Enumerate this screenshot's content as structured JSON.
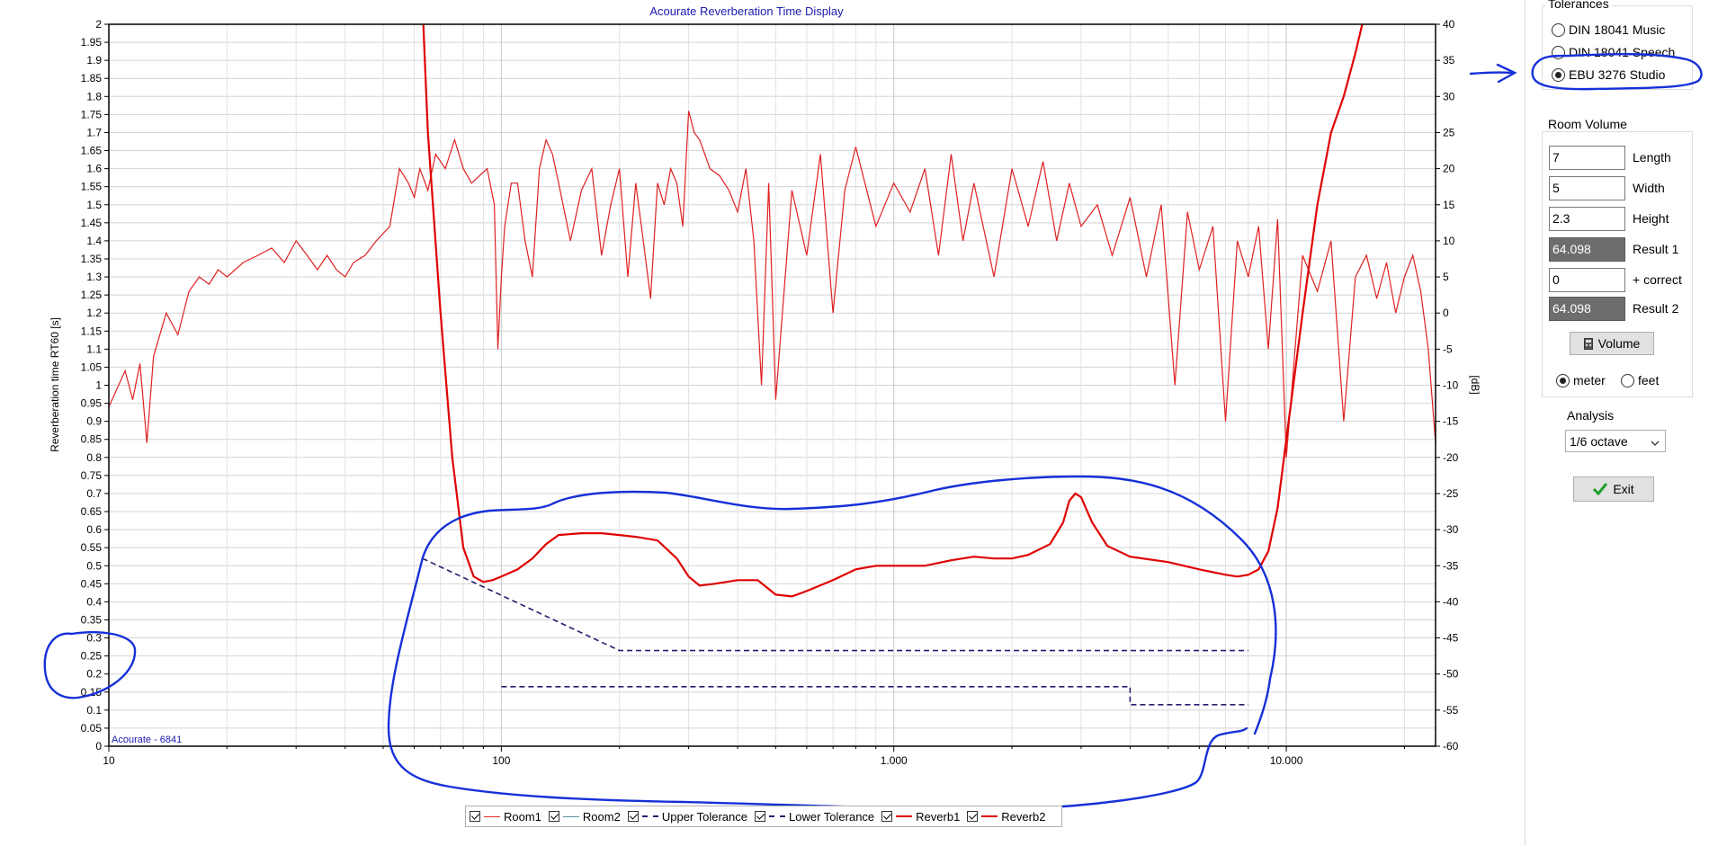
{
  "tolerances": {
    "title": "Tolerances",
    "options": [
      {
        "label": "DIN 18041 Music",
        "checked": false
      },
      {
        "label": "DIN 18041 Speech",
        "checked": false
      },
      {
        "label": "EBU 3276 Studio",
        "checked": true
      }
    ]
  },
  "room_volume": {
    "title": "Room Volume",
    "fields": [
      {
        "value": "7",
        "label": "Length",
        "readonly": false
      },
      {
        "value": "5",
        "label": "Width",
        "readonly": false
      },
      {
        "value": "2.3",
        "label": "Height",
        "readonly": false
      },
      {
        "value": "64.098",
        "label": "Result 1",
        "readonly": true
      },
      {
        "value": "0",
        "label": "+ correct",
        "readonly": false
      },
      {
        "value": "64.098",
        "label": "Result 2",
        "readonly": true
      }
    ],
    "volume_button": "Volume",
    "units": [
      {
        "label": "meter",
        "checked": true
      },
      {
        "label": "feet",
        "checked": false
      }
    ]
  },
  "analysis": {
    "label": "Analysis",
    "selected": "1/6 octave"
  },
  "exit_button": "Exit",
  "legend": [
    {
      "label": "Room1",
      "color": "#e03030",
      "style": "solid"
    },
    {
      "label": "Room2",
      "color": "#5a8fa0",
      "style": "solid"
    },
    {
      "label": "Upper Tolerance",
      "color": "#2a1a6e",
      "style": "dashed"
    },
    {
      "label": "Lower Tolerance",
      "color": "#2a1a6e",
      "style": "dashed"
    },
    {
      "label": "Reverb1",
      "color": "#e00000",
      "style": "solid"
    },
    {
      "label": "Reverb2",
      "color": "#e00000",
      "style": "solid"
    }
  ],
  "chart_data": {
    "type": "line",
    "title": "Acourate Reverberation Time Display",
    "watermark": "Acourate - 6841",
    "xlabel": "",
    "ylabel": "Reverberation time RT60 [s]",
    "y2label": "[dB]",
    "x_scale": "log",
    "xlim": [
      10,
      24000
    ],
    "ylim": [
      0,
      2
    ],
    "y2lim": [
      -60,
      40
    ],
    "x_ticks": [
      10,
      100,
      1000,
      10000
    ],
    "x_tick_labels": [
      "10",
      "100",
      "1.000",
      "10.000"
    ],
    "y_ticks": [
      "0",
      "0.05",
      "0.1",
      "0.15",
      "0.2",
      "0.25",
      "0.3",
      "0.35",
      "0.4",
      "0.45",
      "0.5",
      "0.55",
      "0.6",
      "0.65",
      "0.7",
      "0.75",
      "0.8",
      "0.85",
      "0.9",
      "0.95",
      "1",
      "1.05",
      "1.1",
      "1.15",
      "1.2",
      "1.25",
      "1.3",
      "1.35",
      "1.4",
      "1.45",
      "1.5",
      "1.55",
      "1.6",
      "1.65",
      "1.7",
      "1.75",
      "1.8",
      "1.85",
      "1.9",
      "1.95",
      "2"
    ],
    "y2_ticks": [
      "-60",
      "-55",
      "-50",
      "-45",
      "-40",
      "-35",
      "-30",
      "-25",
      "-20",
      "-15",
      "-10",
      "-5",
      "0",
      "5",
      "10",
      "15",
      "20",
      "25",
      "30",
      "35",
      "40"
    ],
    "grid": true,
    "series": [
      {
        "name": "Room1",
        "axis": "y2",
        "x": [
          10,
          11,
          11.5,
          12,
          12.5,
          13,
          14,
          15,
          16,
          17,
          18,
          19,
          20,
          22,
          24,
          26,
          28,
          30,
          32,
          34,
          36,
          38,
          40,
          42,
          45,
          48,
          52,
          55,
          58,
          60,
          62,
          65,
          68,
          72,
          76,
          80,
          84,
          88,
          92,
          96,
          98,
          100,
          102,
          106,
          110,
          115,
          120,
          125,
          130,
          135,
          140,
          150,
          160,
          170,
          180,
          190,
          200,
          210,
          220,
          230,
          240,
          250,
          260,
          270,
          280,
          290,
          300,
          310,
          320,
          330,
          340,
          360,
          380,
          400,
          420,
          440,
          460,
          480,
          500,
          550,
          600,
          650,
          700,
          750,
          800,
          900,
          1000,
          1100,
          1200,
          1300,
          1400,
          1500,
          1600,
          1800,
          2000,
          2200,
          2400,
          2600,
          2800,
          3000,
          3300,
          3600,
          4000,
          4400,
          4800,
          5200,
          5600,
          6000,
          6500,
          7000,
          7500,
          8000,
          8500,
          9000,
          9500,
          10000,
          11000,
          12000,
          13000,
          14000,
          15000,
          16000,
          17000,
          18000,
          19000,
          20000,
          21000,
          22000,
          23000,
          24000
        ],
        "values": [
          -13,
          -8,
          -12,
          -7,
          -18,
          -6,
          0,
          -3,
          3,
          5,
          4,
          6,
          5,
          7,
          8,
          9,
          7,
          10,
          8,
          6,
          8,
          6,
          5,
          7,
          8,
          10,
          12,
          20,
          18,
          16,
          20,
          17,
          22,
          20,
          24,
          20,
          18,
          19,
          20,
          15,
          -5,
          5,
          12,
          18,
          18,
          10,
          5,
          20,
          24,
          22,
          18,
          10,
          17,
          20,
          8,
          15,
          20,
          5,
          18,
          10,
          2,
          18,
          15,
          20,
          18,
          12,
          28,
          25,
          24,
          22,
          20,
          19,
          17,
          14,
          20,
          10,
          -10,
          18,
          -12,
          17,
          8,
          22,
          0,
          17,
          23,
          12,
          18,
          14,
          20,
          8,
          22,
          10,
          18,
          5,
          20,
          12,
          21,
          10,
          18,
          12,
          15,
          8,
          16,
          5,
          15,
          -10,
          14,
          6,
          12,
          -15,
          10,
          5,
          12,
          -5,
          13,
          -20,
          8,
          3,
          10,
          -15,
          5,
          8,
          2,
          7,
          0,
          5,
          8,
          3,
          -5,
          -18
        ]
      },
      {
        "name": "Reverb1",
        "axis": "y",
        "x": [
          63,
          65,
          70,
          75,
          80,
          85,
          90,
          95,
          100,
          110,
          120,
          130,
          140,
          160,
          180,
          200,
          220,
          250,
          280,
          300,
          320,
          350,
          400,
          450,
          500,
          550,
          600,
          700,
          800,
          900,
          1000,
          1200,
          1400,
          1600,
          1800,
          2000,
          2200,
          2500,
          2700,
          2800,
          2900,
          3000,
          3200,
          3500,
          4000,
          5000,
          6000,
          7000,
          7500,
          8000,
          8500,
          9000,
          9500,
          10000,
          11000,
          12000,
          13000,
          14000,
          15000,
          16000
        ],
        "values": [
          2.05,
          1.7,
          1.2,
          0.8,
          0.55,
          0.47,
          0.455,
          0.46,
          0.47,
          0.49,
          0.52,
          0.56,
          0.585,
          0.59,
          0.59,
          0.585,
          0.58,
          0.57,
          0.52,
          0.47,
          0.445,
          0.45,
          0.46,
          0.46,
          0.42,
          0.415,
          0.43,
          0.46,
          0.49,
          0.5,
          0.5,
          0.5,
          0.515,
          0.525,
          0.52,
          0.52,
          0.53,
          0.56,
          0.62,
          0.68,
          0.7,
          0.69,
          0.62,
          0.555,
          0.525,
          0.51,
          0.49,
          0.475,
          0.47,
          0.475,
          0.49,
          0.54,
          0.66,
          0.85,
          1.2,
          1.5,
          1.7,
          1.8,
          1.92,
          2.05
        ]
      },
      {
        "name": "Upper Tolerance",
        "axis": "y",
        "x": [
          63,
          200,
          200,
          8000
        ],
        "values": [
          0.52,
          0.265,
          0.265,
          0.265
        ]
      },
      {
        "name": "Lower Tolerance",
        "axis": "y",
        "x": [
          100,
          4000,
          4000,
          8000
        ],
        "values": [
          0.165,
          0.165,
          0.115,
          0.115
        ]
      }
    ]
  }
}
